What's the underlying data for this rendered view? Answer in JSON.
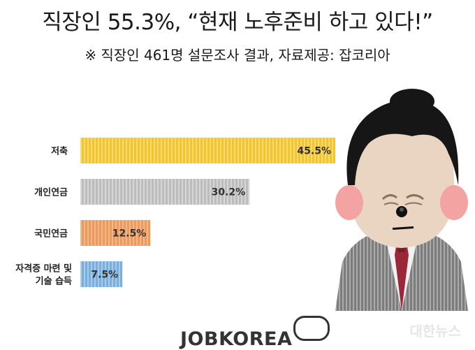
{
  "title": "직장인  55.3%, “현재 노후준비 하고 있다!”",
  "subtitle": "※ 직장인 461명 설문조사 결과, 자료제공: 잡코리아",
  "logo_text": "JOBKOREA",
  "watermark_text": "대한뉴스",
  "chart_data": {
    "type": "bar",
    "orientation": "horizontal",
    "categories": [
      [
        "저축"
      ],
      [
        "개인연금"
      ],
      [
        "국민연금"
      ],
      [
        "자격증 마련 및",
        "기술 습득"
      ]
    ],
    "values": [
      45.5,
      30.2,
      12.5,
      7.5
    ],
    "value_labels": [
      "45.5%",
      "30.2%",
      "12.5%",
      "7.5%"
    ],
    "colors": [
      "#f2c531",
      "#bdbdbd",
      "#ec9a5e",
      "#7aaedb"
    ],
    "stripe_colors": [
      "#f7da70",
      "#d6d6d6",
      "#f3b889",
      "#a9cbeb"
    ],
    "xlim": [
      0,
      50
    ],
    "grid": false,
    "legend": "none"
  },
  "colors": {
    "title_text": "#1a1a1a",
    "bar_label": "#333333"
  }
}
